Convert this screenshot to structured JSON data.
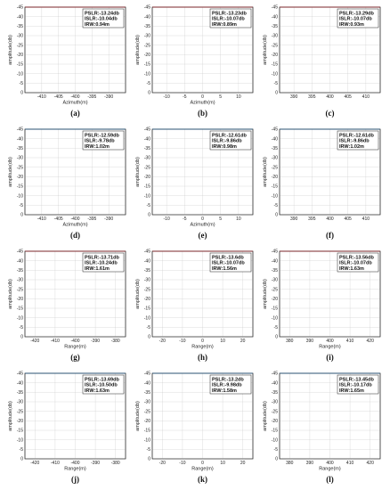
{
  "chart_data": [
    {
      "type": "line",
      "label": "(a)",
      "color": "#e8141b",
      "xlabel": "Azimuth(m)",
      "ylabel": "amplitude(db)",
      "xlim": [
        -415,
        -385
      ],
      "xticks": [
        -410,
        -405,
        -400,
        -395,
        -390
      ],
      "center": -400,
      "ylim": [
        -45,
        0
      ],
      "yticks": [
        0,
        -5,
        -10,
        -15,
        -20,
        -25,
        -30,
        -35,
        -40,
        -45
      ],
      "annotations": [
        "PSLR:-13.24db",
        "ISLR:-10.04db",
        "IRW:0.94m"
      ],
      "pslr": -13.24,
      "spacing": 1.5
    },
    {
      "type": "line",
      "label": "(b)",
      "color": "#e8141b",
      "xlabel": "Azimuth(m)",
      "ylabel": "amplitude(db)",
      "xlim": [
        -14,
        14
      ],
      "xticks": [
        -10,
        -5,
        0,
        5,
        10
      ],
      "center": 0,
      "ylim": [
        -45,
        0
      ],
      "yticks": [
        0,
        -5,
        -10,
        -15,
        -20,
        -25,
        -30,
        -35,
        -40,
        -45
      ],
      "annotations": [
        "PSLR:-13.23db",
        "ISLR:-10.07db",
        "IRW:0.89m"
      ],
      "pslr": -13.23,
      "spacing": 1.5
    },
    {
      "type": "line",
      "label": "(c)",
      "color": "#e8141b",
      "xlabel": "",
      "ylabel": "amplitude(db)",
      "xlim": [
        386,
        414
      ],
      "xticks": [
        390,
        395,
        400,
        405,
        410
      ],
      "center": 400,
      "ylim": [
        -45,
        0
      ],
      "yticks": [
        0,
        -5,
        -10,
        -15,
        -20,
        -25,
        -30,
        -35,
        -40,
        -45
      ],
      "annotations": [
        "PSLR:-13.29db",
        "ISLR:-10.07db",
        "IRW:0.93m"
      ],
      "pslr": -13.29,
      "spacing": 1.5
    },
    {
      "type": "line",
      "label": "(d)",
      "color": "#1f83d4",
      "xlabel": "Azimuth(m)",
      "ylabel": "amplitude(db)",
      "xlim": [
        -415,
        -385
      ],
      "xticks": [
        -410,
        -405,
        -400,
        -395,
        -390
      ],
      "center": -400,
      "ylim": [
        -45,
        0
      ],
      "yticks": [
        0,
        -5,
        -10,
        -15,
        -20,
        -25,
        -30,
        -35,
        -40,
        -45
      ],
      "annotations": [
        "PSLR:-12.59db",
        "ISLR:-9.78db",
        "IRW:1.02m"
      ],
      "pslr": -12.59,
      "spacing": 1.6
    },
    {
      "type": "line",
      "label": "(e)",
      "color": "#1f83d4",
      "xlabel": "Azimuth(m)",
      "ylabel": "amplitude(db)",
      "xlim": [
        -14,
        14
      ],
      "xticks": [
        -10,
        -5,
        0,
        5,
        10
      ],
      "center": 0,
      "ylim": [
        -45,
        0
      ],
      "yticks": [
        0,
        -5,
        -10,
        -15,
        -20,
        -25,
        -30,
        -35,
        -40,
        -45
      ],
      "annotations": [
        "PSLR:-12.61db",
        "ISLR:-9.86db",
        "IRW:0.98m"
      ],
      "pslr": -12.61,
      "spacing": 1.6
    },
    {
      "type": "line",
      "label": "(f)",
      "color": "#1f83d4",
      "xlabel": "",
      "ylabel": "amplitude(db)",
      "xlim": [
        386,
        414
      ],
      "xticks": [
        390,
        395,
        400,
        405,
        410
      ],
      "center": 400,
      "ylim": [
        -45,
        0
      ],
      "yticks": [
        0,
        -5,
        -10,
        -15,
        -20,
        -25,
        -30,
        -35,
        -40,
        -45
      ],
      "annotations": [
        "PSLR:-12.61db",
        "ISLR:-9.86db",
        "IRW:1.02m"
      ],
      "pslr": -12.61,
      "spacing": 1.6
    },
    {
      "type": "line",
      "label": "(g)",
      "color": "#e8141b",
      "xlabel": "Range(m)",
      "ylabel": "amplitude(db)",
      "xlim": [
        -425,
        -375
      ],
      "xticks": [
        -420,
        -410,
        -400,
        -390,
        -380
      ],
      "center": -400,
      "ylim": [
        -45,
        0
      ],
      "yticks": [
        0,
        -5,
        -10,
        -15,
        -20,
        -25,
        -30,
        -35,
        -40,
        -45
      ],
      "annotations": [
        "PSLR:-13.71db",
        "ISLR:-10.24db",
        "IRW:1.61m"
      ],
      "pslr": -13.71,
      "spacing": 2.5
    },
    {
      "type": "line",
      "label": "(h)",
      "color": "#e8141b",
      "xlabel": "Range(m)",
      "ylabel": "amplitude(db)",
      "xlim": [
        -25,
        25
      ],
      "xticks": [
        -20,
        -10,
        0,
        10,
        20
      ],
      "center": 0,
      "ylim": [
        -45,
        0
      ],
      "yticks": [
        0,
        -5,
        -10,
        -15,
        -20,
        -25,
        -30,
        -35,
        -40,
        -45
      ],
      "annotations": [
        "PSLR:-13.6db",
        "ISLR:-10.07db",
        "IRW:1.56m"
      ],
      "pslr": -13.6,
      "spacing": 2.5
    },
    {
      "type": "line",
      "label": "(i)",
      "color": "#e8141b",
      "xlabel": "Range(m)",
      "ylabel": "amplitude(db)",
      "xlim": [
        375,
        425
      ],
      "xticks": [
        380,
        390,
        400,
        410,
        420
      ],
      "center": 400,
      "ylim": [
        -45,
        0
      ],
      "yticks": [
        0,
        -5,
        -10,
        -15,
        -20,
        -25,
        -30,
        -35,
        -40,
        -45
      ],
      "annotations": [
        "PSLR:-13.56db",
        "ISLR:-10.07db",
        "IRW:1.63m"
      ],
      "pslr": -13.56,
      "spacing": 2.5
    },
    {
      "type": "line",
      "label": "(j)",
      "color": "#1f83d4",
      "xlabel": "Range(m)",
      "ylabel": "amplitude(db)",
      "xlim": [
        -425,
        -375
      ],
      "xticks": [
        -420,
        -410,
        -400,
        -390,
        -380
      ],
      "center": -400,
      "ylim": [
        -45,
        0
      ],
      "yticks": [
        0,
        -5,
        -10,
        -15,
        -20,
        -25,
        -30,
        -35,
        -40,
        -45
      ],
      "annotations": [
        "PSLR:-13.69db",
        "ISLR:-10.50db",
        "IRW:1.63m"
      ],
      "pslr": -13.69,
      "spacing": 2.5
    },
    {
      "type": "line",
      "label": "(k)",
      "color": "#1f83d4",
      "xlabel": "Range(m)",
      "ylabel": "amplitude(db)",
      "xlim": [
        -25,
        25
      ],
      "xticks": [
        -20,
        -10,
        0,
        10,
        20
      ],
      "center": 0,
      "ylim": [
        -45,
        0
      ],
      "yticks": [
        0,
        -5,
        -10,
        -15,
        -20,
        -25,
        -30,
        -35,
        -40,
        -45
      ],
      "annotations": [
        "PSLR:-13.2db",
        "ISLR:-9.98db",
        "IRW:1.58m"
      ],
      "pslr": -13.2,
      "spacing": 2.5
    },
    {
      "type": "line",
      "label": "(l)",
      "color": "#1f83d4",
      "xlabel": "Range(m)",
      "ylabel": "amplitude(db)",
      "xlim": [
        375,
        425
      ],
      "xticks": [
        380,
        390,
        400,
        410,
        420
      ],
      "center": 400,
      "ylim": [
        -45,
        0
      ],
      "yticks": [
        0,
        -5,
        -10,
        -15,
        -20,
        -25,
        -30,
        -35,
        -40,
        -45
      ],
      "annotations": [
        "PSLR:-13.45db",
        "ISLR:-10.17db",
        "IRW:1.65m"
      ],
      "pslr": -13.45,
      "spacing": 2.5
    }
  ]
}
